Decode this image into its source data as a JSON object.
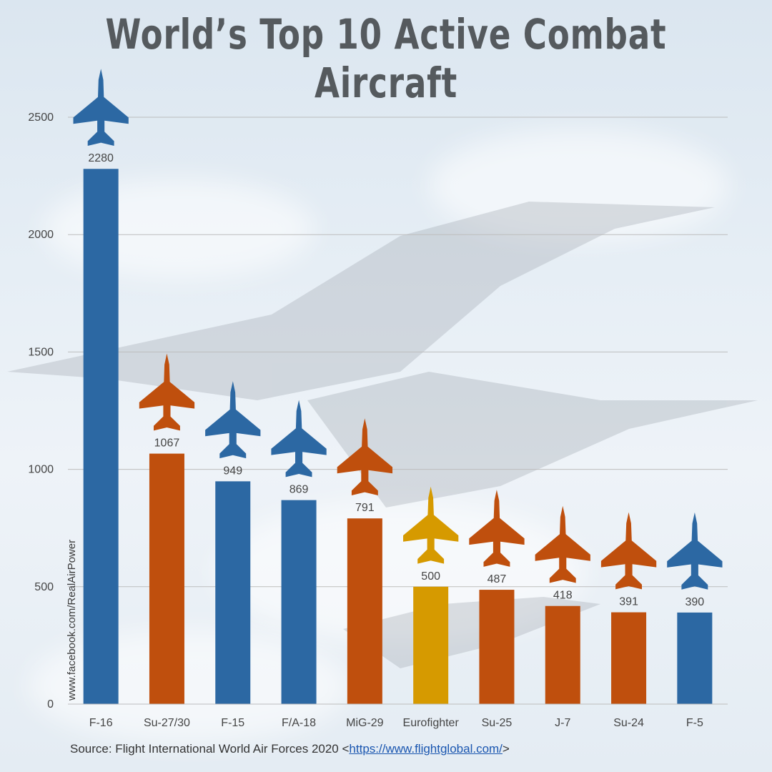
{
  "header": {
    "title": "World’s Top 10 Active Combat Aircraft"
  },
  "credit": "www.facebook.com/RealAirPower",
  "source": {
    "prefix": "Source: Flight International World Air Forces 2020 <",
    "link": "https://www.flightglobal.com/",
    "suffix": ">"
  },
  "colors": {
    "blue": "#2c68a3",
    "orange": "#bf4f0d",
    "gold": "#d69a00",
    "grid": "#bdbdbd",
    "text": "#444444"
  },
  "chart_data": {
    "type": "bar",
    "categories": [
      "F-16",
      "Su-27/30",
      "F-15",
      "F/A-18",
      "MiG-29",
      "Eurofighter",
      "Su-25",
      "J-7",
      "Su-24",
      "F-5"
    ],
    "values": [
      2280,
      1067,
      949,
      869,
      791,
      500,
      487,
      418,
      391,
      390
    ],
    "bar_colors": [
      "blue",
      "orange",
      "blue",
      "blue",
      "orange",
      "gold",
      "orange",
      "orange",
      "orange",
      "blue"
    ],
    "icons": [
      "f16-aircraft-icon",
      "su27-aircraft-icon",
      "f15-aircraft-icon",
      "fa18-aircraft-icon",
      "mig29-aircraft-icon",
      "eurofighter-aircraft-icon",
      "su25-aircraft-icon",
      "j7-aircraft-icon",
      "su24-aircraft-icon",
      "f5-aircraft-icon"
    ],
    "title": "World’s Top 10 Active Combat Aircraft",
    "xlabel": "",
    "ylabel": "",
    "yticks": [
      0,
      500,
      1000,
      1500,
      2000,
      2500
    ],
    "ylim": [
      0,
      2500
    ],
    "grid": true
  }
}
